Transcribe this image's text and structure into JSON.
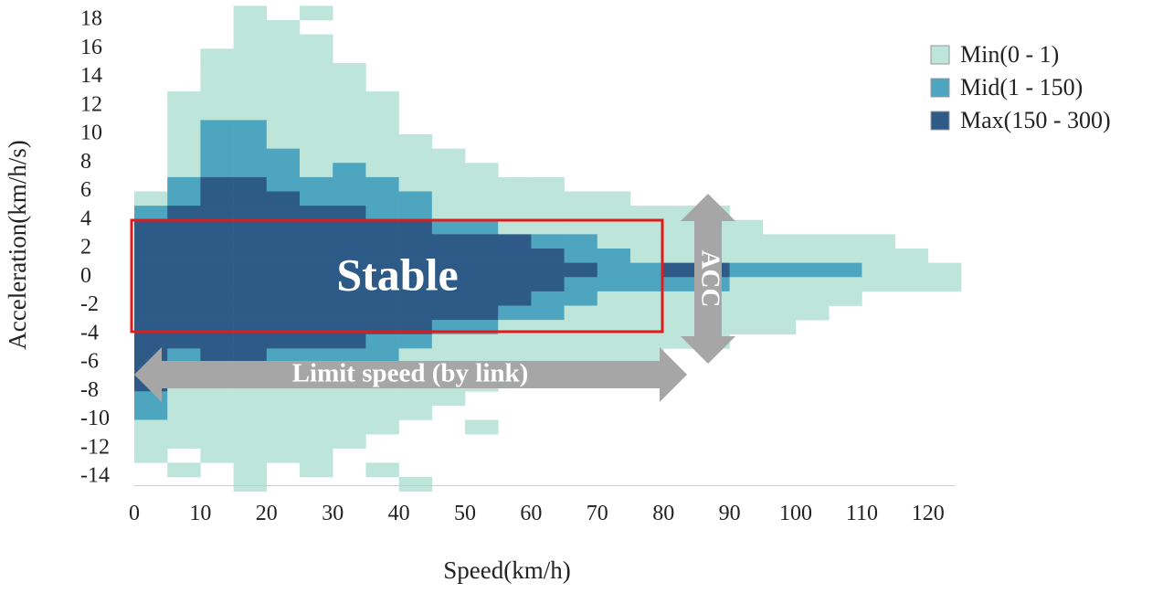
{
  "chart_data": {
    "type": "heatmap",
    "xlabel": "Speed(km/h)",
    "ylabel": "Acceleration(km/h/s)",
    "xlim": [
      0,
      124
    ],
    "ylim": [
      -14.6,
      19
    ],
    "xticks": [
      0,
      10,
      20,
      30,
      40,
      50,
      60,
      70,
      80,
      90,
      100,
      110,
      120
    ],
    "yticks": [
      18,
      16,
      14,
      12,
      10,
      8,
      6,
      4,
      2,
      0,
      -2,
      -4,
      -6,
      -8,
      -10,
      -12,
      -14
    ],
    "xbins": [
      0,
      5,
      10,
      15,
      20,
      25,
      30,
      35,
      40,
      45,
      50,
      55,
      60,
      65,
      70,
      75,
      80,
      85,
      90,
      95,
      100,
      105,
      110,
      115,
      120,
      125
    ],
    "ybins": [
      19,
      18,
      17,
      16,
      15,
      14,
      13,
      12,
      11,
      10,
      9,
      8,
      7,
      6,
      5,
      4,
      3,
      2,
      1,
      0,
      -1,
      -2,
      -3,
      -4,
      -5,
      -6,
      -7,
      -8,
      -9,
      -10,
      -11,
      -12,
      -13,
      -14,
      -15
    ],
    "classes": [
      {
        "name": "Min(0 - 1)",
        "color": "#bde5d9",
        "range": [
          0,
          1
        ]
      },
      {
        "name": "Mid(1 - 150)",
        "color": "#4ea5c0",
        "range": [
          1,
          150
        ]
      },
      {
        "name": "Max(150 - 300)",
        "color": "#2d5a87",
        "range": [
          150,
          300
        ]
      }
    ],
    "values": [
      [
        0,
        0,
        0,
        1,
        0,
        1,
        0,
        0,
        0,
        0,
        0,
        0,
        0,
        0,
        0,
        0,
        0,
        0,
        0,
        0,
        0,
        0,
        0,
        0,
        0
      ],
      [
        0,
        0,
        0,
        1,
        1,
        0,
        0,
        0,
        0,
        0,
        0,
        0,
        0,
        0,
        0,
        0,
        0,
        0,
        0,
        0,
        0,
        0,
        0,
        0,
        0
      ],
      [
        0,
        0,
        0,
        1,
        1,
        1,
        0,
        0,
        0,
        0,
        0,
        0,
        0,
        0,
        0,
        0,
        0,
        0,
        0,
        0,
        0,
        0,
        0,
        0,
        0
      ],
      [
        0,
        0,
        1,
        1,
        1,
        1,
        0,
        0,
        0,
        0,
        0,
        0,
        0,
        0,
        0,
        0,
        0,
        0,
        0,
        0,
        0,
        0,
        0,
        0,
        0
      ],
      [
        0,
        0,
        1,
        1,
        1,
        1,
        1,
        0,
        0,
        0,
        0,
        0,
        0,
        0,
        0,
        0,
        0,
        0,
        0,
        0,
        0,
        0,
        0,
        0,
        0
      ],
      [
        0,
        0,
        1,
        1,
        1,
        1,
        1,
        0,
        0,
        0,
        0,
        0,
        0,
        0,
        0,
        0,
        0,
        0,
        0,
        0,
        0,
        0,
        0,
        0,
        0
      ],
      [
        0,
        1,
        1,
        1,
        1,
        1,
        1,
        1,
        0,
        0,
        0,
        0,
        0,
        0,
        0,
        0,
        0,
        0,
        0,
        0,
        0,
        0,
        0,
        0,
        0
      ],
      [
        0,
        1,
        1,
        1,
        1,
        1,
        1,
        1,
        0,
        0,
        0,
        0,
        0,
        0,
        0,
        0,
        0,
        0,
        0,
        0,
        0,
        0,
        0,
        0,
        0
      ],
      [
        0,
        1,
        50,
        50,
        1,
        1,
        1,
        1,
        0,
        0,
        0,
        0,
        0,
        0,
        0,
        0,
        0,
        0,
        0,
        0,
        0,
        0,
        0,
        0,
        0
      ],
      [
        0,
        1,
        50,
        50,
        1,
        1,
        1,
        1,
        1,
        0,
        0,
        0,
        0,
        0,
        0,
        0,
        0,
        0,
        0,
        0,
        0,
        0,
        0,
        0,
        0
      ],
      [
        0,
        1,
        50,
        50,
        50,
        1,
        1,
        1,
        1,
        1,
        0,
        0,
        0,
        0,
        0,
        0,
        0,
        0,
        0,
        0,
        0,
        0,
        0,
        0,
        0
      ],
      [
        0,
        1,
        50,
        50,
        50,
        1,
        50,
        1,
        1,
        1,
        1,
        0,
        0,
        0,
        0,
        0,
        0,
        0,
        0,
        0,
        0,
        0,
        0,
        0,
        0
      ],
      [
        0,
        50,
        200,
        200,
        50,
        50,
        50,
        50,
        1,
        1,
        1,
        1,
        1,
        0,
        0,
        0,
        0,
        0,
        0,
        0,
        0,
        0,
        0,
        0,
        0
      ],
      [
        1,
        50,
        200,
        200,
        200,
        50,
        50,
        50,
        50,
        1,
        1,
        1,
        1,
        1,
        1,
        0,
        0,
        0,
        0,
        0,
        0,
        0,
        0,
        0,
        0
      ],
      [
        50,
        200,
        200,
        200,
        200,
        200,
        200,
        50,
        50,
        1,
        1,
        1,
        1,
        1,
        1,
        1,
        1,
        1,
        0,
        0,
        0,
        0,
        0,
        0,
        0
      ],
      [
        200,
        200,
        200,
        200,
        200,
        200,
        200,
        200,
        200,
        50,
        50,
        1,
        1,
        1,
        1,
        1,
        1,
        1,
        1,
        0,
        0,
        0,
        0,
        0,
        0
      ],
      [
        200,
        200,
        200,
        200,
        200,
        200,
        200,
        200,
        200,
        200,
        200,
        200,
        50,
        50,
        1,
        1,
        1,
        1,
        1,
        1,
        1,
        1,
        1,
        0,
        0
      ],
      [
        200,
        200,
        200,
        200,
        200,
        200,
        200,
        200,
        200,
        200,
        200,
        200,
        200,
        50,
        50,
        1,
        1,
        1,
        1,
        1,
        1,
        1,
        1,
        1,
        0
      ],
      [
        200,
        200,
        200,
        200,
        200,
        200,
        200,
        200,
        200,
        200,
        200,
        200,
        200,
        200,
        50,
        50,
        200,
        200,
        50,
        50,
        50,
        50,
        1,
        1,
        1
      ],
      [
        200,
        200,
        200,
        200,
        200,
        200,
        200,
        200,
        200,
        200,
        200,
        200,
        200,
        50,
        50,
        50,
        50,
        50,
        1,
        1,
        1,
        1,
        1,
        1,
        1
      ],
      [
        200,
        200,
        200,
        200,
        200,
        200,
        200,
        200,
        200,
        200,
        200,
        200,
        50,
        50,
        1,
        1,
        1,
        1,
        1,
        1,
        1,
        1,
        0,
        0,
        0
      ],
      [
        200,
        200,
        200,
        200,
        200,
        200,
        200,
        200,
        200,
        200,
        200,
        50,
        50,
        1,
        1,
        1,
        1,
        1,
        1,
        1,
        1,
        0,
        0,
        0,
        0
      ],
      [
        200,
        200,
        200,
        200,
        200,
        200,
        200,
        200,
        200,
        50,
        50,
        1,
        1,
        1,
        1,
        1,
        1,
        1,
        1,
        1,
        0,
        0,
        0,
        0,
        0
      ],
      [
        200,
        200,
        200,
        200,
        200,
        200,
        200,
        50,
        50,
        1,
        1,
        1,
        1,
        1,
        1,
        1,
        1,
        1,
        0,
        0,
        0,
        0,
        0,
        0,
        0
      ],
      [
        200,
        50,
        200,
        200,
        50,
        50,
        50,
        50,
        1,
        1,
        1,
        1,
        1,
        1,
        1,
        1,
        0,
        0,
        0,
        0,
        0,
        0,
        0,
        0,
        0
      ],
      [
        200,
        1,
        1,
        1,
        1,
        1,
        1,
        1,
        1,
        1,
        1,
        1,
        1,
        0,
        0,
        1,
        0,
        0,
        0,
        0,
        0,
        0,
        0,
        0,
        0
      ],
      [
        200,
        1,
        1,
        1,
        1,
        1,
        1,
        1,
        1,
        1,
        1,
        0,
        0,
        0,
        0,
        0,
        0,
        0,
        0,
        0,
        0,
        0,
        0,
        0,
        0
      ],
      [
        50,
        1,
        1,
        1,
        1,
        1,
        1,
        1,
        1,
        1,
        0,
        0,
        0,
        0,
        0,
        0,
        0,
        0,
        0,
        0,
        0,
        0,
        0,
        0,
        0
      ],
      [
        50,
        1,
        1,
        1,
        1,
        1,
        1,
        1,
        1,
        0,
        0,
        0,
        0,
        0,
        0,
        0,
        0,
        0,
        0,
        0,
        0,
        0,
        0,
        0,
        0
      ],
      [
        1,
        1,
        1,
        1,
        1,
        1,
        1,
        1,
        0,
        0,
        1,
        0,
        0,
        0,
        0,
        0,
        0,
        0,
        0,
        0,
        0,
        0,
        0,
        0,
        0
      ],
      [
        1,
        1,
        1,
        1,
        1,
        1,
        1,
        0,
        0,
        0,
        0,
        0,
        0,
        0,
        0,
        0,
        0,
        0,
        0,
        0,
        0,
        0,
        0,
        0,
        0
      ],
      [
        1,
        0,
        1,
        1,
        1,
        1,
        0,
        0,
        0,
        0,
        0,
        0,
        0,
        0,
        0,
        0,
        0,
        0,
        0,
        0,
        0,
        0,
        0,
        0,
        0
      ],
      [
        0,
        1,
        0,
        1,
        0,
        1,
        0,
        1,
        0,
        0,
        0,
        0,
        0,
        0,
        0,
        0,
        0,
        0,
        0,
        0,
        0,
        0,
        0,
        0,
        0
      ],
      [
        0,
        0,
        0,
        1,
        0,
        0,
        0,
        0,
        1,
        0,
        0,
        0,
        0,
        0,
        0,
        0,
        0,
        0,
        0,
        0,
        0,
        0,
        0,
        0,
        0
      ]
    ],
    "annotations": {
      "stable": "Stable",
      "limit_speed": "Limit speed (by link)",
      "acc": "ACC"
    }
  }
}
